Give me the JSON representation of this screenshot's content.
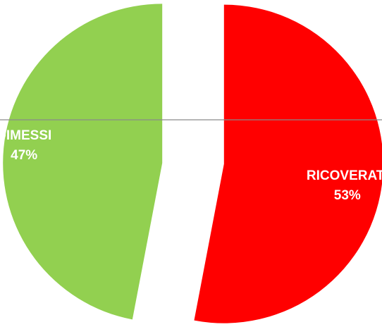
{
  "chart_data": {
    "type": "pie",
    "exploded": true,
    "start_angle_deg": 0,
    "direction": "clockwise",
    "slices": [
      {
        "label": "RICOVERATI",
        "percent_label": "53%",
        "value": 53,
        "color": "#ff0000"
      },
      {
        "label": "DIMESSI",
        "percent_label": "47%",
        "value": 47,
        "color": "#92d050"
      }
    ],
    "label_color": "#ffffff",
    "legend": "none",
    "title": ""
  }
}
